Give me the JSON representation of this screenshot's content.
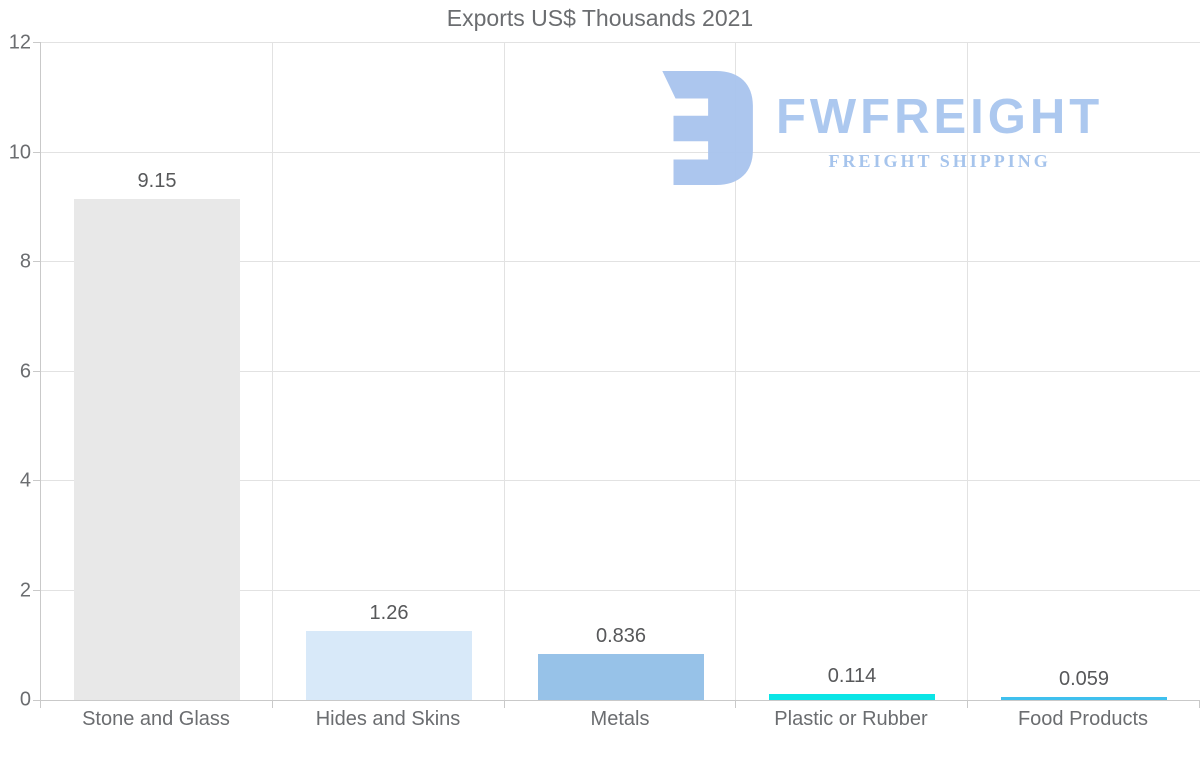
{
  "watermark": {
    "brand": "FWFREIGHT",
    "tagline": "FREIGHT SHIPPING",
    "color": "#a9c6ef"
  },
  "chart_data": {
    "type": "bar",
    "title": "Exports US$ Thousands 2021",
    "categories": [
      "Stone and Glass",
      "Hides and Skins",
      "Metals",
      "Plastic or Rubber",
      "Food Products"
    ],
    "values": [
      9.15,
      1.26,
      0.836,
      0.114,
      0.059
    ],
    "value_labels": [
      "9.15",
      "1.26",
      "0.836",
      "0.114",
      "0.059"
    ],
    "bar_colors": [
      "#e8e8e8",
      "#d8e9f9",
      "#97c2e8",
      "#0be5e6",
      "#3fc0ee"
    ],
    "xlabel": "",
    "ylabel": "",
    "ylim": [
      0,
      12
    ],
    "yticks": [
      0,
      2,
      4,
      6,
      8,
      10,
      12
    ],
    "grid": true,
    "legend": false,
    "colors": {
      "grid": "#e2e2e2",
      "axis": "#c9c9c9",
      "title_text": "#6b6d70",
      "tick_text": "#6b6d70",
      "value_text": "#57585a"
    }
  }
}
